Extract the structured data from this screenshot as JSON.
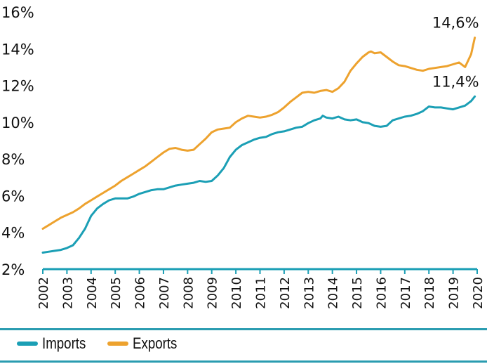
{
  "colors": {
    "imports": "#1b9fb5",
    "exports": "#eda22e",
    "axis": "#1b9fb5",
    "rule": "#2a9cb0"
  },
  "chart_data": {
    "type": "line",
    "title": "",
    "xlabel": "",
    "ylabel": "",
    "ylim": [
      2,
      16
    ],
    "xlim": [
      2002,
      2020
    ],
    "grid": false,
    "legend_position": "bottom-left",
    "y_ticks": [
      "2%",
      "4%",
      "6%",
      "8%",
      "10%",
      "12%",
      "14%",
      "16%"
    ],
    "y_tick_values": [
      2,
      4,
      6,
      8,
      10,
      12,
      14,
      16
    ],
    "x_ticks": [
      "2002",
      "2003",
      "2004",
      "2005",
      "2006",
      "2007",
      "2008",
      "2009",
      "2010",
      "2011",
      "2012",
      "2013",
      "2014",
      "2015",
      "2016",
      "2017",
      "2018",
      "2019",
      "2020"
    ],
    "x_tick_values": [
      2002,
      2003,
      2004,
      2005,
      2006,
      2007,
      2008,
      2009,
      2010,
      2011,
      2012,
      2013,
      2014,
      2015,
      2016,
      2017,
      2018,
      2019,
      2020
    ],
    "series": [
      {
        "name": "Imports",
        "color_key": "imports",
        "x": [
          2002.0,
          2002.25,
          2002.5,
          2002.75,
          2003.0,
          2003.25,
          2003.5,
          2003.75,
          2004.0,
          2004.25,
          2004.5,
          2004.75,
          2005.0,
          2005.25,
          2005.5,
          2005.75,
          2006.0,
          2006.25,
          2006.5,
          2006.75,
          2007.0,
          2007.25,
          2007.5,
          2007.75,
          2008.0,
          2008.25,
          2008.5,
          2008.75,
          2009.0,
          2009.25,
          2009.5,
          2009.75,
          2010.0,
          2010.25,
          2010.5,
          2010.75,
          2011.0,
          2011.25,
          2011.5,
          2011.75,
          2012.0,
          2012.25,
          2012.5,
          2012.75,
          2013.0,
          2013.25,
          2013.5,
          2013.6,
          2013.75,
          2014.0,
          2014.25,
          2014.5,
          2014.75,
          2015.0,
          2015.25,
          2015.5,
          2015.75,
          2016.0,
          2016.25,
          2016.5,
          2016.75,
          2017.0,
          2017.25,
          2017.5,
          2017.75,
          2018.0,
          2018.25,
          2018.5,
          2018.75,
          2019.0,
          2019.25,
          2019.5,
          2019.75,
          2019.9
        ],
        "values": [
          2.9,
          2.95,
          3.0,
          3.05,
          3.15,
          3.3,
          3.7,
          4.2,
          4.9,
          5.3,
          5.55,
          5.75,
          5.85,
          5.85,
          5.85,
          5.95,
          6.1,
          6.2,
          6.3,
          6.35,
          6.35,
          6.45,
          6.55,
          6.6,
          6.65,
          6.7,
          6.8,
          6.75,
          6.8,
          7.1,
          7.5,
          8.1,
          8.5,
          8.75,
          8.9,
          9.05,
          9.15,
          9.2,
          9.35,
          9.45,
          9.5,
          9.6,
          9.7,
          9.75,
          9.95,
          10.1,
          10.2,
          10.35,
          10.25,
          10.2,
          10.3,
          10.15,
          10.1,
          10.15,
          10.0,
          9.95,
          9.8,
          9.75,
          9.8,
          10.1,
          10.2,
          10.3,
          10.35,
          10.45,
          10.6,
          10.85,
          10.8,
          10.8,
          10.75,
          10.7,
          10.8,
          10.9,
          11.15,
          11.4
        ]
      },
      {
        "name": "Exports",
        "color_key": "exports",
        "x": [
          2002.0,
          2002.25,
          2002.5,
          2002.75,
          2003.0,
          2003.25,
          2003.5,
          2003.75,
          2004.0,
          2004.25,
          2004.5,
          2004.75,
          2005.0,
          2005.25,
          2005.5,
          2005.75,
          2006.0,
          2006.25,
          2006.5,
          2006.75,
          2007.0,
          2007.25,
          2007.5,
          2007.75,
          2008.0,
          2008.25,
          2008.5,
          2008.75,
          2009.0,
          2009.25,
          2009.5,
          2009.75,
          2010.0,
          2010.25,
          2010.5,
          2010.75,
          2011.0,
          2011.25,
          2011.5,
          2011.75,
          2012.0,
          2012.25,
          2012.5,
          2012.75,
          2013.0,
          2013.25,
          2013.5,
          2013.75,
          2014.0,
          2014.25,
          2014.5,
          2014.75,
          2015.0,
          2015.25,
          2015.5,
          2015.6,
          2015.75,
          2016.0,
          2016.25,
          2016.5,
          2016.75,
          2017.0,
          2017.25,
          2017.5,
          2017.75,
          2018.0,
          2018.25,
          2018.5,
          2018.75,
          2019.0,
          2019.25,
          2019.5,
          2019.75,
          2019.9
        ],
        "values": [
          4.2,
          4.4,
          4.6,
          4.8,
          4.95,
          5.1,
          5.3,
          5.55,
          5.75,
          5.95,
          6.15,
          6.35,
          6.55,
          6.8,
          7.0,
          7.2,
          7.4,
          7.6,
          7.85,
          8.1,
          8.35,
          8.55,
          8.6,
          8.5,
          8.45,
          8.5,
          8.8,
          9.1,
          9.45,
          9.6,
          9.65,
          9.7,
          10.0,
          10.2,
          10.35,
          10.3,
          10.25,
          10.3,
          10.4,
          10.55,
          10.8,
          11.1,
          11.35,
          11.6,
          11.65,
          11.6,
          11.7,
          11.75,
          11.65,
          11.85,
          12.2,
          12.8,
          13.2,
          13.55,
          13.8,
          13.85,
          13.75,
          13.8,
          13.55,
          13.3,
          13.1,
          13.05,
          12.95,
          12.85,
          12.8,
          12.9,
          12.95,
          13.0,
          13.05,
          13.15,
          13.25,
          13.0,
          13.7,
          14.6
        ]
      }
    ],
    "annotations": [
      {
        "series": "Exports",
        "text": "14,6%",
        "x": 2019.9,
        "y": 14.6
      },
      {
        "series": "Imports",
        "text": "11,4%",
        "x": 2019.9,
        "y": 11.4
      }
    ]
  },
  "legend": {
    "items": [
      {
        "label": "Imports",
        "color_key": "imports"
      },
      {
        "label": "Exports",
        "color_key": "exports"
      }
    ]
  }
}
